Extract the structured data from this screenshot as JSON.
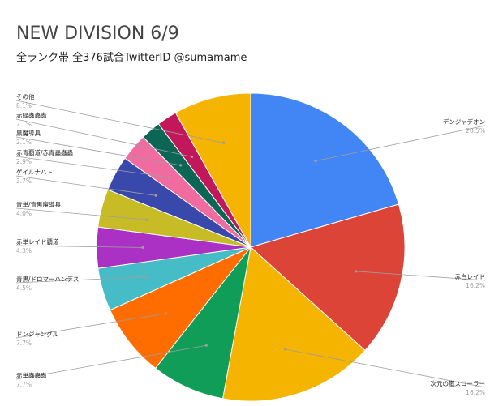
{
  "chart_data": {
    "type": "pie",
    "title": "NEW DIVISION 6/9",
    "subtitle": "全ランク帯 全376試合TwitterID @sumamame",
    "slices": [
      {
        "label": "デンジャデオン",
        "percent_label": "20.5%",
        "value": 20.5,
        "color": "#4285f4"
      },
      {
        "label": "赤白レイド",
        "percent_label": "16.2%",
        "value": 16.2,
        "color": "#db4437"
      },
      {
        "label": "次元の嵐スコーラー",
        "percent_label": "16.2%",
        "value": 16.2,
        "color": "#f4b400"
      },
      {
        "label": "赤単蟲蟲蟲",
        "percent_label": "7.7%",
        "value": 7.7,
        "color": "#0f9d58"
      },
      {
        "label": "ドンジャングル",
        "percent_label": "7.7%",
        "value": 7.7,
        "color": "#ff6d00"
      },
      {
        "label": "青黒/ドロマーハンデス",
        "percent_label": "4.5%",
        "value": 4.5,
        "color": "#46bdc6"
      },
      {
        "label": "赤単レイド覇道",
        "percent_label": "4.3%",
        "value": 4.3,
        "color": "#ab30c4"
      },
      {
        "label": "青単/青黒魔導具",
        "percent_label": "4.0%",
        "value": 4.0,
        "color": "#c7bc25"
      },
      {
        "label": "ゲイルナハト",
        "percent_label": "3.7%",
        "value": 3.7,
        "color": "#3949ab"
      },
      {
        "label": "赤青覇道/赤青蟲蟲蟲",
        "percent_label": "2.9%",
        "value": 2.9,
        "color": "#f06ba0"
      },
      {
        "label": "黒魔導具",
        "percent_label": "2.1%",
        "value": 2.1,
        "color": "#0b6655"
      },
      {
        "label": "赤緑蟲蟲蟲",
        "percent_label": "2.1%",
        "value": 2.1,
        "color": "#c2185b"
      },
      {
        "label": "その他",
        "percent_label": "8.1%",
        "value": 8.1,
        "color": "#f4b400"
      }
    ],
    "legend": "labels-outside"
  }
}
